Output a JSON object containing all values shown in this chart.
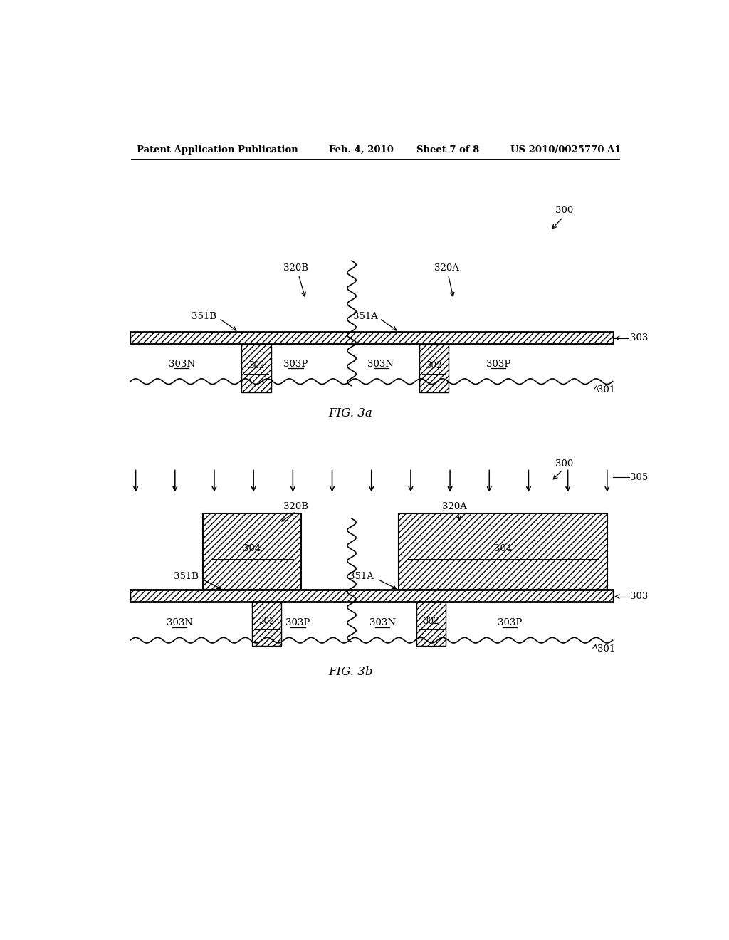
{
  "bg_color": "#ffffff",
  "header_text1": "Patent Application Publication",
  "header_text2": "Feb. 4, 2010",
  "header_text3": "Sheet 7 of 8",
  "header_text4": "US 2010/0025770 A1",
  "fig3a_label": "FIG. 3a",
  "fig3b_label": "FIG. 3b",
  "label_300": "300",
  "label_301": "301",
  "label_303": "303",
  "label_305": "305",
  "label_302": "302",
  "label_303N": "303N",
  "label_303P": "303P",
  "label_304": "304",
  "label_320A": "320A",
  "label_320B": "320B",
  "label_351A": "351A",
  "label_351B": "351B"
}
